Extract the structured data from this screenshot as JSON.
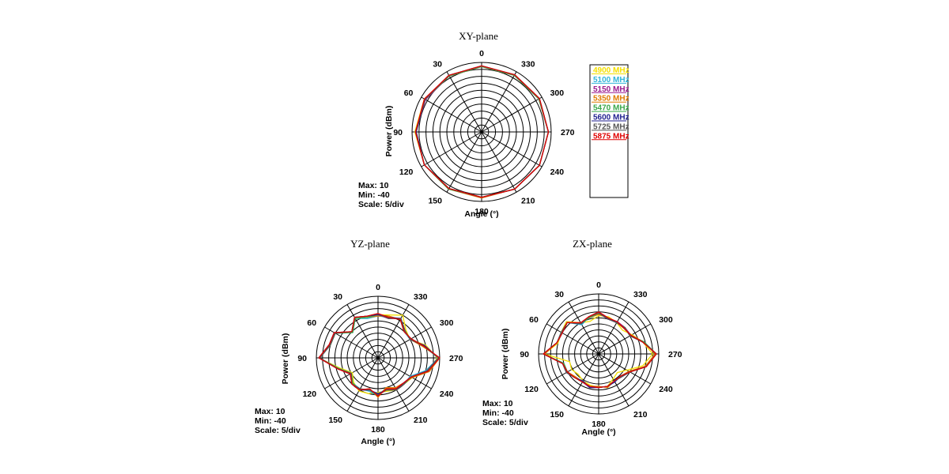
{
  "chart_data": [
    {
      "type": "polar-line",
      "title": "XY-plane",
      "ylabel": "Power  (dBm)",
      "xlabel": "Angle  (°)",
      "rlim": [
        -40,
        10
      ],
      "angle_ticks": [
        0,
        330,
        300,
        270,
        240,
        210,
        180,
        150,
        120,
        90,
        60,
        30
      ],
      "grid": true,
      "info": [
        "Max: 10",
        "Min: -40",
        "Scale: 5/div"
      ],
      "angles": [
        0,
        30,
        60,
        90,
        120,
        150,
        180,
        210,
        240,
        270,
        300,
        330
      ],
      "series": [
        {
          "name": "4900 MHz",
          "color": "#f5e000",
          "values": [
            7,
            6.5,
            7.5,
            8,
            7.5,
            7,
            7,
            7.5,
            8,
            8,
            7.5,
            7
          ]
        },
        {
          "name": "5100 MHz",
          "color": "#33b5d9",
          "values": [
            7,
            6.5,
            7,
            7.5,
            7.5,
            7,
            7,
            7.5,
            8,
            8,
            7.5,
            7
          ]
        },
        {
          "name": "5150 MHz",
          "color": "#9b1b8f",
          "values": [
            7,
            6.5,
            6.5,
            7.5,
            7.5,
            7,
            7,
            7.5,
            8,
            8,
            7.5,
            7
          ]
        },
        {
          "name": "5350 MHz",
          "color": "#e07b00",
          "values": [
            7,
            6.5,
            7,
            7,
            7.5,
            7.5,
            7.5,
            7.5,
            8,
            8,
            7.5,
            7
          ]
        },
        {
          "name": "5470 MHz",
          "color": "#3aa84a",
          "values": [
            7,
            6.5,
            7,
            7.5,
            7.5,
            7.5,
            7,
            7.5,
            8,
            8,
            7.5,
            7
          ]
        },
        {
          "name": "5600 MHz",
          "color": "#1f1f8f",
          "values": [
            7.5,
            7,
            7,
            7,
            7.5,
            7,
            7,
            7.5,
            8,
            8,
            8,
            7.5
          ]
        },
        {
          "name": "5725 MHz",
          "color": "#555555",
          "values": [
            7.5,
            7,
            7,
            7.5,
            7.5,
            7,
            7,
            7.5,
            8,
            8,
            8,
            7.5
          ]
        },
        {
          "name": "5875 MHz",
          "color": "#e00000",
          "values": [
            7.5,
            7,
            7.5,
            7.5,
            7.5,
            7,
            7,
            7.5,
            8,
            8,
            8,
            7.5
          ]
        }
      ]
    },
    {
      "type": "polar-line",
      "title": "YZ-plane",
      "ylabel": "Power  (dBm)",
      "xlabel": "Angle  (°)",
      "rlim": [
        -40,
        10
      ],
      "angle_ticks": [
        0,
        330,
        300,
        270,
        240,
        210,
        180,
        150,
        120,
        90,
        60,
        30
      ],
      "grid": true,
      "info": [
        "Max: 10",
        "Min: -40",
        "Scale: 5/div"
      ],
      "angles": [
        0,
        15,
        30,
        45,
        60,
        75,
        90,
        105,
        120,
        135,
        150,
        165,
        180,
        195,
        210,
        225,
        240,
        255,
        270,
        285,
        300,
        315,
        330,
        345
      ],
      "series": [
        {
          "name": "4900 MHz",
          "color": "#f5e000",
          "values": [
            -5,
            -6,
            -3,
            -10,
            0,
            0,
            8,
            -8,
            -16,
            -12,
            -9,
            -10,
            -12,
            -12,
            -10,
            -10,
            -8,
            2,
            8,
            0,
            -10,
            -8,
            0,
            -4
          ]
        },
        {
          "name": "5100 MHz",
          "color": "#33b5d9",
          "values": [
            -6,
            -7,
            -3,
            -11,
            1,
            1,
            8,
            -7,
            -15,
            -11,
            -11,
            -12,
            -9,
            -15,
            -11,
            -10,
            -10,
            0,
            9,
            -2,
            -10,
            -10,
            -4,
            -6
          ]
        },
        {
          "name": "5150 MHz",
          "color": "#9b1b8f",
          "values": [
            -5,
            -5,
            -2,
            -10,
            0,
            1,
            8,
            -6,
            -14,
            -10,
            -10,
            -13,
            -10,
            -14,
            -10,
            -11,
            -9,
            1,
            9,
            -2,
            -9,
            -10,
            -3,
            -7
          ]
        },
        {
          "name": "5350 MHz",
          "color": "#e07b00",
          "values": [
            -6,
            -6,
            -2,
            -10,
            1,
            1,
            8,
            -6,
            -14,
            -11,
            -10,
            -14,
            -8,
            -15,
            -12,
            -11,
            -8,
            3,
            10,
            -3,
            -10,
            -9,
            -4,
            -5
          ]
        },
        {
          "name": "5470 MHz",
          "color": "#3aa84a",
          "values": [
            -5,
            -6,
            -3,
            -11,
            0,
            0,
            8,
            -7,
            -15,
            -11,
            -10,
            -13,
            -9,
            -14,
            -11,
            -10,
            -9,
            2,
            9,
            -2,
            -9,
            -10,
            -4,
            -6
          ]
        },
        {
          "name": "5600 MHz",
          "color": "#1f1f8f",
          "values": [
            -5,
            -5,
            -2,
            -10,
            1,
            1,
            8,
            -6,
            -14,
            -10,
            -10,
            -13,
            -11,
            -13,
            -10,
            -11,
            -9,
            1,
            9,
            -1,
            -10,
            -9,
            -3,
            -6
          ]
        },
        {
          "name": "5725 MHz",
          "color": "#555555",
          "values": [
            -4,
            -5,
            -2,
            -10,
            0,
            0,
            7,
            -6,
            -15,
            -10,
            -11,
            -13,
            -10,
            -13,
            -10,
            -10,
            -9,
            1,
            9,
            -2,
            -10,
            -9,
            -3,
            -7
          ]
        },
        {
          "name": "5875 MHz",
          "color": "#e00000",
          "values": [
            -4,
            -5,
            -2,
            -10,
            1,
            1,
            8,
            -6,
            -14,
            -10,
            -10,
            -14,
            -9,
            -14,
            -11,
            -11,
            -9,
            2,
            10,
            -2,
            -9,
            -10,
            -4,
            -6
          ]
        }
      ]
    },
    {
      "type": "polar-line",
      "title": "ZX-plane",
      "ylabel": "Power  (dBm)",
      "xlabel": "Angle  (°)",
      "rlim": [
        -40,
        10
      ],
      "angle_ticks": [
        0,
        330,
        300,
        270,
        240,
        210,
        180,
        150,
        120,
        90,
        60,
        30
      ],
      "grid": true,
      "info": [
        "Max: 10",
        "Min: -40",
        "Scale: 5/div"
      ],
      "angles": [
        0,
        15,
        30,
        45,
        60,
        75,
        90,
        105,
        120,
        135,
        150,
        165,
        180,
        195,
        210,
        225,
        240,
        255,
        270,
        285,
        300,
        315,
        330,
        345
      ],
      "series": [
        {
          "name": "4900 MHz",
          "color": "#f5e000",
          "values": [
            -8,
            -12,
            -10,
            -2,
            -4,
            -5,
            5,
            -15,
            -14,
            -16,
            -14,
            -13,
            -12,
            -12,
            -16,
            -18,
            -13,
            -2,
            5,
            -2,
            -8,
            -12,
            -10,
            -8
          ]
        },
        {
          "name": "5100 MHz",
          "color": "#33b5d9",
          "values": [
            -6,
            -8,
            -12,
            -3,
            -5,
            -4,
            6,
            -10,
            -9,
            -12,
            -14,
            -11,
            -12,
            -12,
            -14,
            -14,
            -10,
            0,
            8,
            -1,
            -10,
            -9,
            -10,
            -9
          ]
        },
        {
          "name": "5150 MHz",
          "color": "#9b1b8f",
          "values": [
            -6,
            -8,
            -11,
            -3,
            -5,
            -4,
            6,
            -9,
            -9,
            -12,
            -13,
            -11,
            -12,
            -12,
            -14,
            -13,
            -10,
            1,
            8,
            -2,
            -9,
            -9,
            -9,
            -10
          ]
        },
        {
          "name": "5350 MHz",
          "color": "#e07b00",
          "values": [
            -7,
            -9,
            -10,
            -3,
            -5,
            -4,
            5,
            -9,
            -10,
            -13,
            -13,
            -12,
            -13,
            -11,
            -14,
            -14,
            -11,
            0,
            7,
            -1,
            -9,
            -10,
            -10,
            -9
          ]
        },
        {
          "name": "5470 MHz",
          "color": "#3aa84a",
          "values": [
            -6,
            -9,
            -11,
            -3,
            -5,
            -4,
            6,
            -10,
            -10,
            -12,
            -13,
            -12,
            -12,
            -12,
            -14,
            -14,
            -10,
            1,
            8,
            -1,
            -10,
            -9,
            -10,
            -9
          ]
        },
        {
          "name": "5600 MHz",
          "color": "#1f1f8f",
          "values": [
            -5,
            -8,
            -11,
            -3,
            -5,
            -4,
            6,
            -9,
            -9,
            -12,
            -14,
            -11,
            -12,
            -12,
            -13,
            -14,
            -10,
            1,
            8,
            -2,
            -9,
            -10,
            -9,
            -10
          ]
        },
        {
          "name": "5725 MHz",
          "color": "#555555",
          "values": [
            -6,
            -8,
            -11,
            -3,
            -4,
            -4,
            6,
            -9,
            -9,
            -12,
            -13,
            -12,
            -12,
            -12,
            -14,
            -13,
            -10,
            1,
            8,
            -2,
            -10,
            -9,
            -10,
            -10
          ]
        },
        {
          "name": "5875 MHz",
          "color": "#e00000",
          "values": [
            -5,
            -8,
            -10,
            -3,
            -5,
            -4,
            6,
            -9,
            -10,
            -12,
            -13,
            -12,
            -12,
            -12,
            -14,
            -14,
            -10,
            1,
            8,
            -2,
            -9,
            -10,
            -9,
            -9
          ]
        }
      ]
    }
  ]
}
